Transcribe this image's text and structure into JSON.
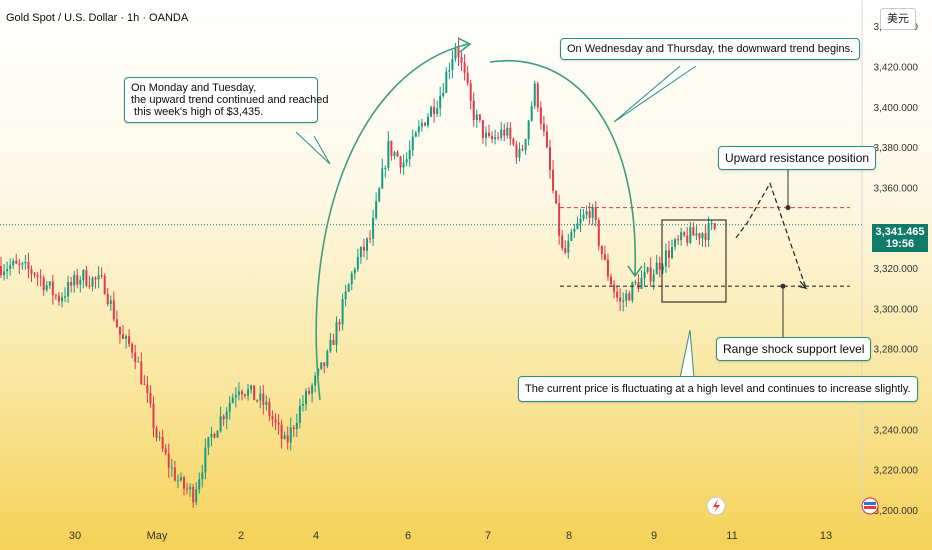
{
  "header": {
    "title": "Gold Spot / U.S. Dollar · 1h · OANDA",
    "currency_button": "美元"
  },
  "price_badge": {
    "price": "3,341.465",
    "countdown": "19:56",
    "color": "#0f7b68"
  },
  "annotations": {
    "monday": "On Monday and Tuesday,\nthe upward trend continued and reached\n this week's high of $3,435.",
    "wednesday": "On Wednesday and Thursday, the downward trend begins.",
    "resistance": "Upward resistance position",
    "support": "Range shock support level",
    "current": "The current price is fluctuating at a high level and continues to increase slightly."
  },
  "colors": {
    "up": "#149b84",
    "down": "#e2394b",
    "arrow": "#3c9e7d",
    "resistance": "#e2394b",
    "support": "#333333"
  },
  "icons": {
    "flash": "lightning-icon",
    "logo": "tradingview-flag-icon"
  },
  "chart_data": {
    "type": "candlestick",
    "title": "Gold Spot / U.S. Dollar · 1h · OANDA",
    "x_tick_labels": [
      "30",
      "May",
      "2",
      "4",
      "6",
      "7",
      "8",
      "9",
      "11",
      "13"
    ],
    "y_tick_labels": [
      "3,200.000",
      "3,220.000",
      "3,240.000",
      "3,260.000",
      "3,280.000",
      "3,300.000",
      "3,320.000",
      "3,340.000",
      "3,360.000",
      "3,380.000",
      "3,400.000",
      "3,420.000",
      "3,440.000"
    ],
    "y_ticks": [
      3200,
      3220,
      3240,
      3260,
      3280,
      3300,
      3320,
      3340,
      3360,
      3380,
      3400,
      3420,
      3440
    ],
    "ylim": [
      3198,
      3449
    ],
    "current_price": 3341.465,
    "resistance_level": 3350,
    "support_level": 3311,
    "week_high": 3435,
    "trend_points": [
      [
        "30",
        3321
      ],
      [
        "30",
        3318
      ],
      [
        "30",
        3305
      ],
      [
        "30",
        3316
      ],
      [
        "30",
        3312
      ],
      [
        "May",
        3284
      ],
      [
        "May",
        3280
      ],
      [
        "May",
        3258
      ],
      [
        "May",
        3235
      ],
      [
        "May",
        3222
      ],
      [
        "May",
        3212
      ],
      [
        "May",
        3208
      ],
      [
        "2",
        3238
      ],
      [
        "2",
        3262
      ],
      [
        "2",
        3252
      ],
      [
        "4",
        3232
      ],
      [
        "4",
        3250
      ],
      [
        "4",
        3262
      ],
      [
        "4",
        3275
      ],
      [
        "4",
        3298
      ],
      [
        "4",
        3322
      ],
      [
        "6",
        3335
      ],
      [
        "6",
        3380
      ],
      [
        "6",
        3372
      ],
      [
        "6",
        3392
      ],
      [
        "6",
        3405
      ],
      [
        "7",
        3432
      ],
      [
        "7",
        3398
      ],
      [
        "7",
        3382
      ],
      [
        "7",
        3388
      ],
      [
        "7",
        3375
      ],
      [
        "8",
        3410
      ],
      [
        "8",
        3370
      ],
      [
        "8",
        3325
      ],
      [
        "8",
        3340
      ],
      [
        "8",
        3350
      ],
      [
        "8",
        3322
      ],
      [
        "9",
        3302
      ],
      [
        "9",
        3312
      ],
      [
        "9",
        3318
      ],
      [
        "9",
        3328
      ],
      [
        "9",
        3335
      ],
      [
        "11",
        3343
      ]
    ],
    "projection_points": [
      [
        3335
      ],
      [
        3343
      ],
      [
        3362
      ],
      [
        3310
      ]
    ]
  }
}
